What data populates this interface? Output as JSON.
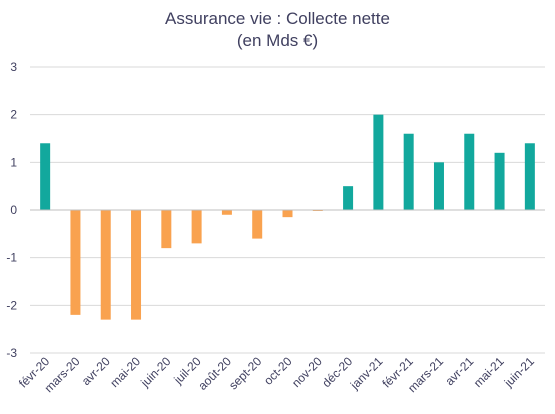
{
  "chart_data": {
    "type": "bar",
    "title": "Assurance vie : Collecte nette",
    "subtitle": "(en Mds €)",
    "xlabel": "",
    "ylabel": "",
    "ylim": [
      -3,
      3
    ],
    "yticks": [
      3,
      2,
      1,
      0,
      -1,
      -2,
      -3
    ],
    "grid": true,
    "legend": "none",
    "colors": {
      "positive": "#12A89D",
      "negative": "#F9A24F",
      "grid": "#D9D9D9",
      "axis": "#BFBFBF",
      "text": "#404060"
    },
    "categories": [
      "févr-20",
      "mars-20",
      "avr-20",
      "mai-20",
      "juin-20",
      "juil-20",
      "août-20",
      "sept-20",
      "oct-20",
      "nov-20",
      "déc-20",
      "janv-21",
      "févr-21",
      "mars-21",
      "avr-21",
      "mai-21",
      "juin-21"
    ],
    "values": [
      1.4,
      -2.2,
      -2.3,
      -2.3,
      -0.8,
      -0.7,
      -0.1,
      -0.6,
      -0.15,
      -0.02,
      0.5,
      2.0,
      1.6,
      1.0,
      1.6,
      1.2,
      1.4
    ]
  }
}
